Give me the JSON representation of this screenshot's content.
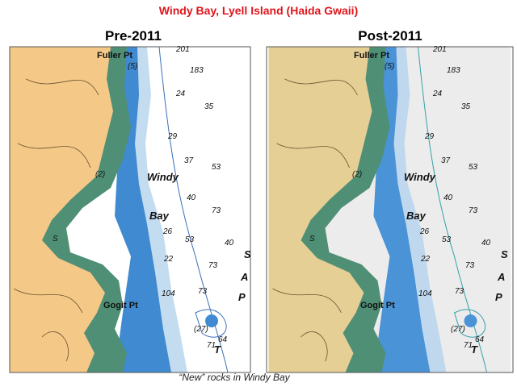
{
  "title": "Windy Bay, Lyell Island (Haida Gwaii)",
  "caption": "“New” rocks in Windy Bay",
  "maps": [
    {
      "heading": "Pre-2011",
      "labels": [
        "Fuller Pt",
        "(5)",
        "201",
        "183",
        "24",
        "35",
        "29",
        "37",
        "53",
        "Windy",
        "(2)",
        "40",
        "Bay",
        "26",
        "53",
        "73",
        "40",
        "73",
        "22",
        "S",
        "Gogit Pt",
        "73",
        "104",
        "64",
        "71",
        "(27)",
        "T",
        "P",
        "A",
        "S"
      ]
    },
    {
      "heading": "Post-2011",
      "labels": [
        "Fuller Pt",
        "(5)",
        "201",
        "183",
        "24",
        "35",
        "29",
        "37",
        "53",
        "Windy",
        "(2)",
        "40",
        "Bay",
        "26",
        "53",
        "73",
        "40",
        "73",
        "22",
        "S",
        "Gogit Pt",
        "73",
        "104",
        "64",
        "71",
        "(27)",
        "T",
        "P",
        "A",
        "S"
      ]
    }
  ]
}
